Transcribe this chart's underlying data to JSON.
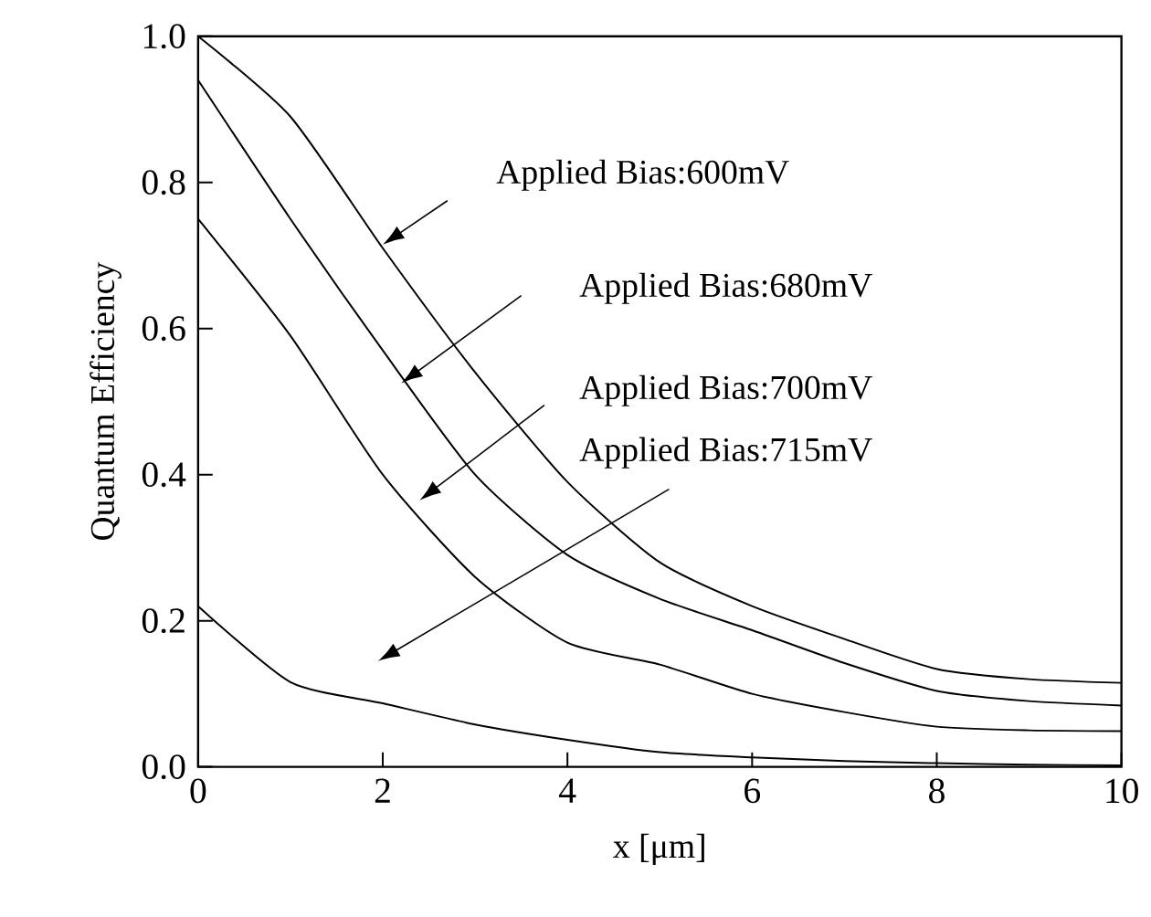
{
  "chart_data": {
    "type": "line",
    "xlabel": "x [μm]",
    "ylabel": "Quantum Efficiency",
    "xlim": [
      0,
      10
    ],
    "ylim": [
      0,
      1
    ],
    "xticks": [
      0,
      2,
      4,
      6,
      8,
      10
    ],
    "yticks": [
      {
        "value": 0,
        "label": "0.0"
      },
      {
        "value": 0.2,
        "label": "0.2"
      },
      {
        "value": 0.4,
        "label": "0.4"
      },
      {
        "value": 0.6,
        "label": "0.6"
      },
      {
        "value": 0.8,
        "label": "0.8"
      },
      {
        "value": 1,
        "label": "1.0"
      }
    ],
    "x": [
      0,
      1,
      2,
      3,
      4,
      5,
      6,
      7,
      8,
      9,
      10
    ],
    "series": [
      {
        "color": "#000000",
        "values": [
          1.0,
          0.89,
          0.71,
          0.54,
          0.39,
          0.28,
          0.22,
          0.175,
          0.134,
          0.12,
          0.115
        ]
      },
      {
        "color": "#000000",
        "values": [
          0.94,
          0.75,
          0.57,
          0.4,
          0.29,
          0.23,
          0.187,
          0.142,
          0.104,
          0.09,
          0.084
        ]
      },
      {
        "color": "#000000",
        "values": [
          0.75,
          0.59,
          0.4,
          0.26,
          0.17,
          0.14,
          0.1,
          0.075,
          0.055,
          0.05,
          0.049
        ]
      },
      {
        "color": "#000000",
        "values": [
          0.22,
          0.116,
          0.087,
          0.058,
          0.037,
          0.02,
          0.013,
          0.008,
          0.005,
          0.003,
          0.002
        ]
      }
    ],
    "annotations": [
      "Applied Bias:600mV",
      "Applied Bias:680mV",
      "Applied Bias:700mV",
      "Applied Bias:715mV"
    ],
    "grid": false,
    "marker": "none",
    "line_style": "solid"
  }
}
